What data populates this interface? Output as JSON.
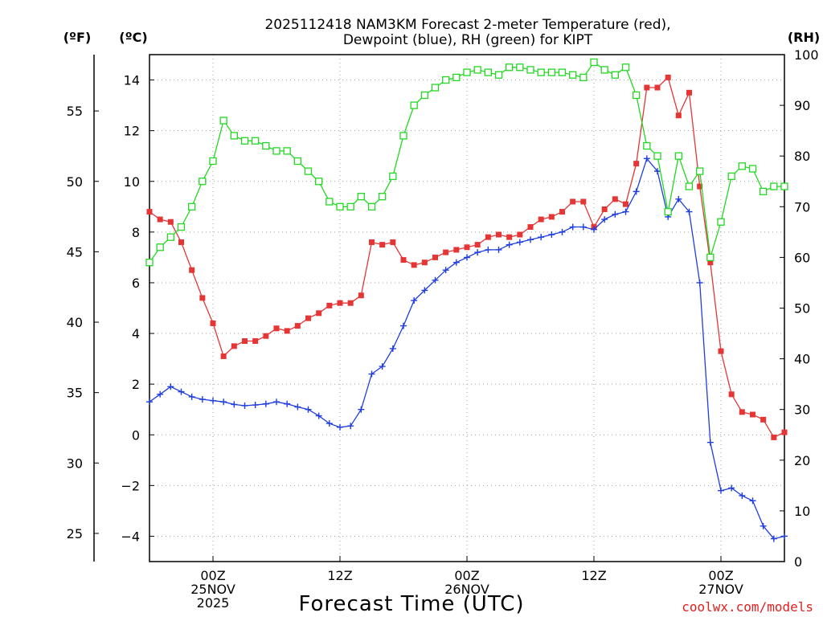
{
  "title_line1": "2025112418 NAM3KM Forecast 2-meter Temperature (red),",
  "title_line2": "Dewpoint (blue), RH (green) for KIPT",
  "unit_f": "(ºF)",
  "unit_c": "(ºC)",
  "unit_rh": "(RH)",
  "credit": "coolwx.com/models",
  "colors": {
    "temperature": "#e53535",
    "dewpoint": "#1f3de0",
    "rh": "#22d822",
    "grid": "#a0a0a0"
  },
  "chart_data": {
    "type": "line",
    "title": "2025112418 NAM3KM Forecast 2-meter Temperature (red), Dewpoint (blue), RH (green) for KIPT",
    "xlabel": "Forecast Time (UTC)",
    "x_unit": "hours from 2025-11-24 18Z",
    "xlim": [
      0,
      60
    ],
    "x_ticks": [
      {
        "x": 6,
        "lines": [
          "00Z",
          "25NOV",
          "2025"
        ]
      },
      {
        "x": 18,
        "lines": [
          "12Z"
        ]
      },
      {
        "x": 30,
        "lines": [
          "00Z",
          "26NOV"
        ]
      },
      {
        "x": 42,
        "lines": [
          "12Z"
        ]
      },
      {
        "x": 54,
        "lines": [
          "00Z",
          "27NOV"
        ]
      }
    ],
    "ylim_c": [
      -5,
      15
    ],
    "y_ticks_c": [
      -4,
      -2,
      0,
      2,
      4,
      6,
      8,
      10,
      12,
      14
    ],
    "y_ticks_f": [
      25,
      30,
      35,
      40,
      45,
      50,
      55
    ],
    "ylim_rh": [
      0,
      100
    ],
    "y_ticks_rh": [
      0,
      10,
      20,
      30,
      40,
      50,
      60,
      70,
      80,
      90,
      100
    ],
    "grid": true,
    "series": [
      {
        "name": "Temperature",
        "axis": "c",
        "marker": "filled-square",
        "x": [
          0,
          1,
          2,
          3,
          4,
          5,
          6,
          7,
          8,
          9,
          10,
          11,
          12,
          13,
          14,
          15,
          16,
          17,
          18,
          19,
          20,
          21,
          22,
          23,
          24,
          25,
          26,
          27,
          28,
          29,
          30,
          31,
          32,
          33,
          34,
          35,
          36,
          37,
          38,
          39,
          40,
          41,
          42,
          43,
          44,
          45,
          46,
          47,
          48,
          49,
          50,
          51,
          52,
          53,
          54,
          55,
          56,
          57,
          58,
          59,
          60
        ],
        "values": [
          8.8,
          8.5,
          8.4,
          7.6,
          6.5,
          5.4,
          4.4,
          3.1,
          3.5,
          3.7,
          3.7,
          3.9,
          4.2,
          4.1,
          4.3,
          4.6,
          4.8,
          5.1,
          5.2,
          5.2,
          5.5,
          7.6,
          7.5,
          7.6,
          6.9,
          6.7,
          6.8,
          7.0,
          7.2,
          7.3,
          7.4,
          7.5,
          7.8,
          7.9,
          7.8,
          7.9,
          8.2,
          8.5,
          8.6,
          8.8,
          9.2,
          9.2,
          8.2,
          8.9,
          9.3,
          9.1,
          10.7,
          13.7,
          13.7,
          14.1,
          12.6,
          13.5,
          9.8,
          6.8,
          3.3,
          1.6,
          0.9,
          0.8,
          0.6,
          -0.1,
          0.1
        ]
      },
      {
        "name": "Dewpoint",
        "axis": "c",
        "marker": "plus",
        "x": [
          0,
          1,
          2,
          3,
          4,
          5,
          6,
          7,
          8,
          9,
          10,
          11,
          12,
          13,
          14,
          15,
          16,
          17,
          18,
          19,
          20,
          21,
          22,
          23,
          24,
          25,
          26,
          27,
          28,
          29,
          30,
          31,
          32,
          33,
          34,
          35,
          36,
          37,
          38,
          39,
          40,
          41,
          42,
          43,
          44,
          45,
          46,
          47,
          48,
          49,
          50,
          51,
          52,
          53,
          54,
          55,
          56,
          57,
          58,
          59,
          60
        ],
        "values": [
          1.3,
          1.6,
          1.9,
          1.7,
          1.5,
          1.4,
          1.35,
          1.3,
          1.2,
          1.15,
          1.18,
          1.22,
          1.3,
          1.22,
          1.1,
          1.0,
          0.75,
          0.45,
          0.3,
          0.35,
          1.0,
          2.4,
          2.7,
          3.4,
          4.3,
          5.3,
          5.7,
          6.1,
          6.5,
          6.8,
          7.0,
          7.2,
          7.3,
          7.3,
          7.5,
          7.6,
          7.7,
          7.8,
          7.9,
          8.0,
          8.2,
          8.2,
          8.1,
          8.5,
          8.7,
          8.8,
          9.6,
          10.9,
          10.4,
          8.6,
          9.3,
          8.8,
          6.0,
          -0.3,
          -2.2,
          -2.1,
          -2.4,
          -2.6,
          -3.6,
          -4.1,
          -4.0
        ]
      },
      {
        "name": "RH",
        "axis": "rh",
        "marker": "open-square",
        "x": [
          0,
          1,
          2,
          3,
          4,
          5,
          6,
          7,
          8,
          9,
          10,
          11,
          12,
          13,
          14,
          15,
          16,
          17,
          18,
          19,
          20,
          21,
          22,
          23,
          24,
          25,
          26,
          27,
          28,
          29,
          30,
          31,
          32,
          33,
          34,
          35,
          36,
          37,
          38,
          39,
          40,
          41,
          42,
          43,
          44,
          45,
          46,
          47,
          48,
          49,
          50,
          51,
          52,
          53,
          54,
          55,
          56,
          57,
          58,
          59,
          60
        ],
        "values": [
          59,
          62,
          64,
          66,
          70,
          75,
          79,
          87,
          84,
          83,
          83,
          82,
          81,
          81,
          79,
          77,
          75,
          71,
          70,
          70,
          72,
          70,
          72,
          76,
          84,
          90,
          92,
          93.5,
          95,
          95.5,
          96.5,
          97,
          96.5,
          96,
          97.5,
          97.5,
          97,
          96.5,
          96.5,
          96.5,
          96,
          95.5,
          98.5,
          97,
          96,
          97.5,
          92,
          82,
          80,
          69,
          80,
          74,
          77,
          60,
          67,
          76,
          78,
          77.5,
          73,
          74,
          74
        ]
      }
    ]
  }
}
